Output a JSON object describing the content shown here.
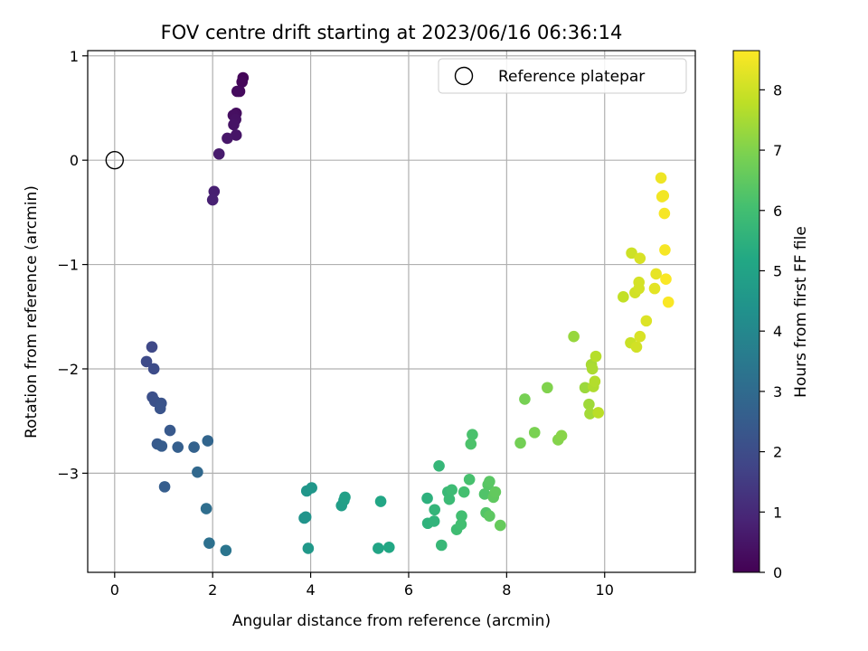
{
  "chart_data": {
    "type": "scatter",
    "title": "FOV centre drift starting at 2023/06/16 06:36:14",
    "xlabel": "Angular distance from reference (arcmin)",
    "ylabel": "Rotation from reference (arcmin)",
    "xlim": [
      -0.55,
      11.85
    ],
    "ylim": [
      -3.95,
      1.05
    ],
    "xticks": [
      0,
      2,
      4,
      6,
      8,
      10
    ],
    "yticks": [
      1,
      0,
      -1,
      -2,
      -3
    ],
    "ytick_labels": [
      "1",
      "0",
      "−1",
      "−2",
      "−3"
    ],
    "grid": true,
    "legend": {
      "label": "Reference platepar",
      "position": "top-right"
    },
    "reference_point": {
      "x": 0,
      "y": 0
    },
    "colorbar": {
      "label": "Hours from first FF file",
      "range": [
        0,
        8.65
      ],
      "ticks": [
        0,
        1,
        2,
        3,
        4,
        5,
        6,
        7,
        8
      ],
      "colormap": "viridis"
    },
    "points": [
      {
        "x": 2.62,
        "y": 0.79,
        "c": 0.1
      },
      {
        "x": 2.6,
        "y": 0.75,
        "c": 0.15
      },
      {
        "x": 2.55,
        "y": 0.66,
        "c": 0.2
      },
      {
        "x": 2.5,
        "y": 0.66,
        "c": 0.25
      },
      {
        "x": 2.48,
        "y": 0.45,
        "c": 0.3
      },
      {
        "x": 2.42,
        "y": 0.43,
        "c": 0.35
      },
      {
        "x": 2.47,
        "y": 0.39,
        "c": 0.4
      },
      {
        "x": 2.43,
        "y": 0.34,
        "c": 0.45
      },
      {
        "x": 2.48,
        "y": 0.24,
        "c": 0.5
      },
      {
        "x": 2.3,
        "y": 0.21,
        "c": 0.55
      },
      {
        "x": 2.13,
        "y": 0.06,
        "c": 0.65
      },
      {
        "x": 2.03,
        "y": -0.3,
        "c": 0.75
      },
      {
        "x": 2.0,
        "y": -0.38,
        "c": 0.8
      },
      {
        "x": 0.76,
        "y": -1.79,
        "c": 1.9
      },
      {
        "x": 0.65,
        "y": -1.93,
        "c": 1.95
      },
      {
        "x": 0.8,
        "y": -2.0,
        "c": 2.0
      },
      {
        "x": 0.77,
        "y": -2.27,
        "c": 2.1
      },
      {
        "x": 0.82,
        "y": -2.31,
        "c": 2.15
      },
      {
        "x": 0.95,
        "y": -2.33,
        "c": 2.2
      },
      {
        "x": 0.93,
        "y": -2.38,
        "c": 2.25
      },
      {
        "x": 1.13,
        "y": -2.59,
        "c": 2.4
      },
      {
        "x": 0.87,
        "y": -2.72,
        "c": 2.45
      },
      {
        "x": 0.96,
        "y": -2.74,
        "c": 2.5
      },
      {
        "x": 1.29,
        "y": -2.75,
        "c": 2.6
      },
      {
        "x": 1.62,
        "y": -2.75,
        "c": 2.7
      },
      {
        "x": 1.9,
        "y": -2.69,
        "c": 2.8
      },
      {
        "x": 1.69,
        "y": -2.99,
        "c": 2.9
      },
      {
        "x": 1.02,
        "y": -3.13,
        "c": 2.55
      },
      {
        "x": 1.87,
        "y": -3.34,
        "c": 3.1
      },
      {
        "x": 1.93,
        "y": -3.67,
        "c": 3.2
      },
      {
        "x": 2.27,
        "y": -3.74,
        "c": 3.35
      },
      {
        "x": 3.87,
        "y": -3.43,
        "c": 4.4
      },
      {
        "x": 3.9,
        "y": -3.42,
        "c": 4.45
      },
      {
        "x": 3.92,
        "y": -3.17,
        "c": 4.5
      },
      {
        "x": 4.02,
        "y": -3.14,
        "c": 4.55
      },
      {
        "x": 3.95,
        "y": -3.72,
        "c": 4.6
      },
      {
        "x": 4.63,
        "y": -3.31,
        "c": 4.8
      },
      {
        "x": 4.68,
        "y": -3.26,
        "c": 4.85
      },
      {
        "x": 4.7,
        "y": -3.23,
        "c": 4.9
      },
      {
        "x": 5.38,
        "y": -3.72,
        "c": 5.05
      },
      {
        "x": 5.43,
        "y": -3.27,
        "c": 5.1
      },
      {
        "x": 5.6,
        "y": -3.71,
        "c": 5.15
      },
      {
        "x": 6.38,
        "y": -3.24,
        "c": 5.5
      },
      {
        "x": 6.39,
        "y": -3.48,
        "c": 5.55
      },
      {
        "x": 6.52,
        "y": -3.46,
        "c": 5.6
      },
      {
        "x": 6.53,
        "y": -3.35,
        "c": 5.65
      },
      {
        "x": 6.62,
        "y": -2.93,
        "c": 5.7
      },
      {
        "x": 6.67,
        "y": -3.69,
        "c": 5.75
      },
      {
        "x": 6.8,
        "y": -3.18,
        "c": 5.8
      },
      {
        "x": 6.83,
        "y": -3.25,
        "c": 5.85
      },
      {
        "x": 6.88,
        "y": -3.16,
        "c": 5.9
      },
      {
        "x": 6.98,
        "y": -3.54,
        "c": 5.95
      },
      {
        "x": 7.07,
        "y": -3.49,
        "c": 6.0
      },
      {
        "x": 7.08,
        "y": -3.41,
        "c": 6.0
      },
      {
        "x": 7.13,
        "y": -3.18,
        "c": 6.05
      },
      {
        "x": 7.24,
        "y": -3.06,
        "c": 6.1
      },
      {
        "x": 7.3,
        "y": -2.63,
        "c": 6.15
      },
      {
        "x": 7.27,
        "y": -2.72,
        "c": 6.2
      },
      {
        "x": 7.55,
        "y": -3.2,
        "c": 6.25
      },
      {
        "x": 7.58,
        "y": -3.38,
        "c": 6.3
      },
      {
        "x": 7.62,
        "y": -3.11,
        "c": 6.35
      },
      {
        "x": 7.65,
        "y": -3.08,
        "c": 6.4
      },
      {
        "x": 7.65,
        "y": -3.41,
        "c": 6.45
      },
      {
        "x": 7.73,
        "y": -3.23,
        "c": 6.5
      },
      {
        "x": 7.77,
        "y": -3.18,
        "c": 6.55
      },
      {
        "x": 7.87,
        "y": -3.5,
        "c": 6.6
      },
      {
        "x": 8.28,
        "y": -2.71,
        "c": 6.8
      },
      {
        "x": 8.37,
        "y": -2.29,
        "c": 6.85
      },
      {
        "x": 8.57,
        "y": -2.61,
        "c": 6.9
      },
      {
        "x": 8.83,
        "y": -2.18,
        "c": 7.0
      },
      {
        "x": 9.05,
        "y": -2.68,
        "c": 7.05
      },
      {
        "x": 9.12,
        "y": -2.64,
        "c": 7.1
      },
      {
        "x": 9.37,
        "y": -1.69,
        "c": 7.3
      },
      {
        "x": 9.6,
        "y": -2.18,
        "c": 7.35
      },
      {
        "x": 9.68,
        "y": -2.34,
        "c": 7.4
      },
      {
        "x": 9.7,
        "y": -2.43,
        "c": 7.45
      },
      {
        "x": 9.73,
        "y": -1.96,
        "c": 7.5
      },
      {
        "x": 9.75,
        "y": -2.0,
        "c": 7.55
      },
      {
        "x": 9.77,
        "y": -2.17,
        "c": 7.6
      },
      {
        "x": 9.8,
        "y": -2.12,
        "c": 7.65
      },
      {
        "x": 9.82,
        "y": -1.88,
        "c": 7.7
      },
      {
        "x": 9.87,
        "y": -2.42,
        "c": 7.75
      },
      {
        "x": 10.38,
        "y": -1.31,
        "c": 7.85
      },
      {
        "x": 10.53,
        "y": -1.75,
        "c": 7.95
      },
      {
        "x": 10.55,
        "y": -0.89,
        "c": 8.0
      },
      {
        "x": 10.62,
        "y": -1.27,
        "c": 8.05
      },
      {
        "x": 10.65,
        "y": -1.79,
        "c": 8.05
      },
      {
        "x": 10.7,
        "y": -1.23,
        "c": 8.1
      },
      {
        "x": 10.7,
        "y": -1.17,
        "c": 8.1
      },
      {
        "x": 10.72,
        "y": -0.94,
        "c": 8.15
      },
      {
        "x": 10.72,
        "y": -1.69,
        "c": 8.15
      },
      {
        "x": 10.85,
        "y": -1.54,
        "c": 8.2
      },
      {
        "x": 11.02,
        "y": -1.23,
        "c": 8.3
      },
      {
        "x": 11.05,
        "y": -1.09,
        "c": 8.35
      },
      {
        "x": 11.15,
        "y": -0.17,
        "c": 8.45
      },
      {
        "x": 11.17,
        "y": -0.35,
        "c": 8.5
      },
      {
        "x": 11.2,
        "y": -0.34,
        "c": 8.5
      },
      {
        "x": 11.22,
        "y": -0.51,
        "c": 8.55
      },
      {
        "x": 11.23,
        "y": -0.86,
        "c": 8.55
      },
      {
        "x": 11.25,
        "y": -1.14,
        "c": 8.6
      },
      {
        "x": 11.3,
        "y": -1.36,
        "c": 8.6
      }
    ]
  }
}
